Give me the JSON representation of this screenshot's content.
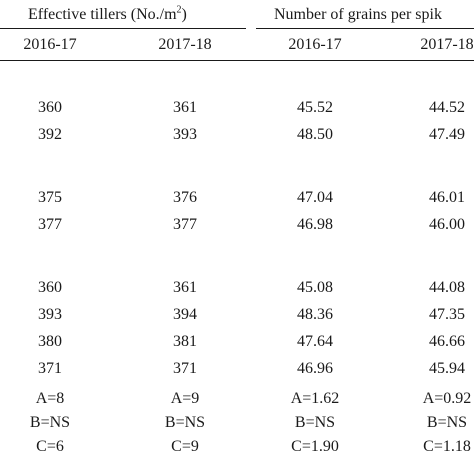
{
  "header": {
    "group_tillers": "Effective tillers (No./m",
    "group_tillers_sup": "2",
    "group_tillers_close": ")",
    "group_grains": "Number of grains per spik",
    "years": [
      "2016-17",
      "2017-18",
      "2016-17",
      "2017-18"
    ]
  },
  "rows": [
    [
      "360",
      "361",
      "45.52",
      "44.52"
    ],
    [
      "392",
      "393",
      "48.50",
      "47.49"
    ],
    [
      "375",
      "376",
      "47.04",
      "46.01"
    ],
    [
      "377",
      "377",
      "46.98",
      "46.00"
    ],
    [
      "360",
      "361",
      "45.08",
      "44.08"
    ],
    [
      "393",
      "394",
      "48.36",
      "47.35"
    ],
    [
      "380",
      "381",
      "47.64",
      "46.66"
    ],
    [
      "371",
      "371",
      "46.96",
      "45.94"
    ],
    [
      "A=8",
      "A=9",
      "A=1.62",
      "A=0.92"
    ],
    [
      "B=NS",
      "B=NS",
      "B=NS",
      "B=NS"
    ],
    [
      "C=6",
      "C=9",
      "C=1.90",
      "C=1.18"
    ]
  ]
}
